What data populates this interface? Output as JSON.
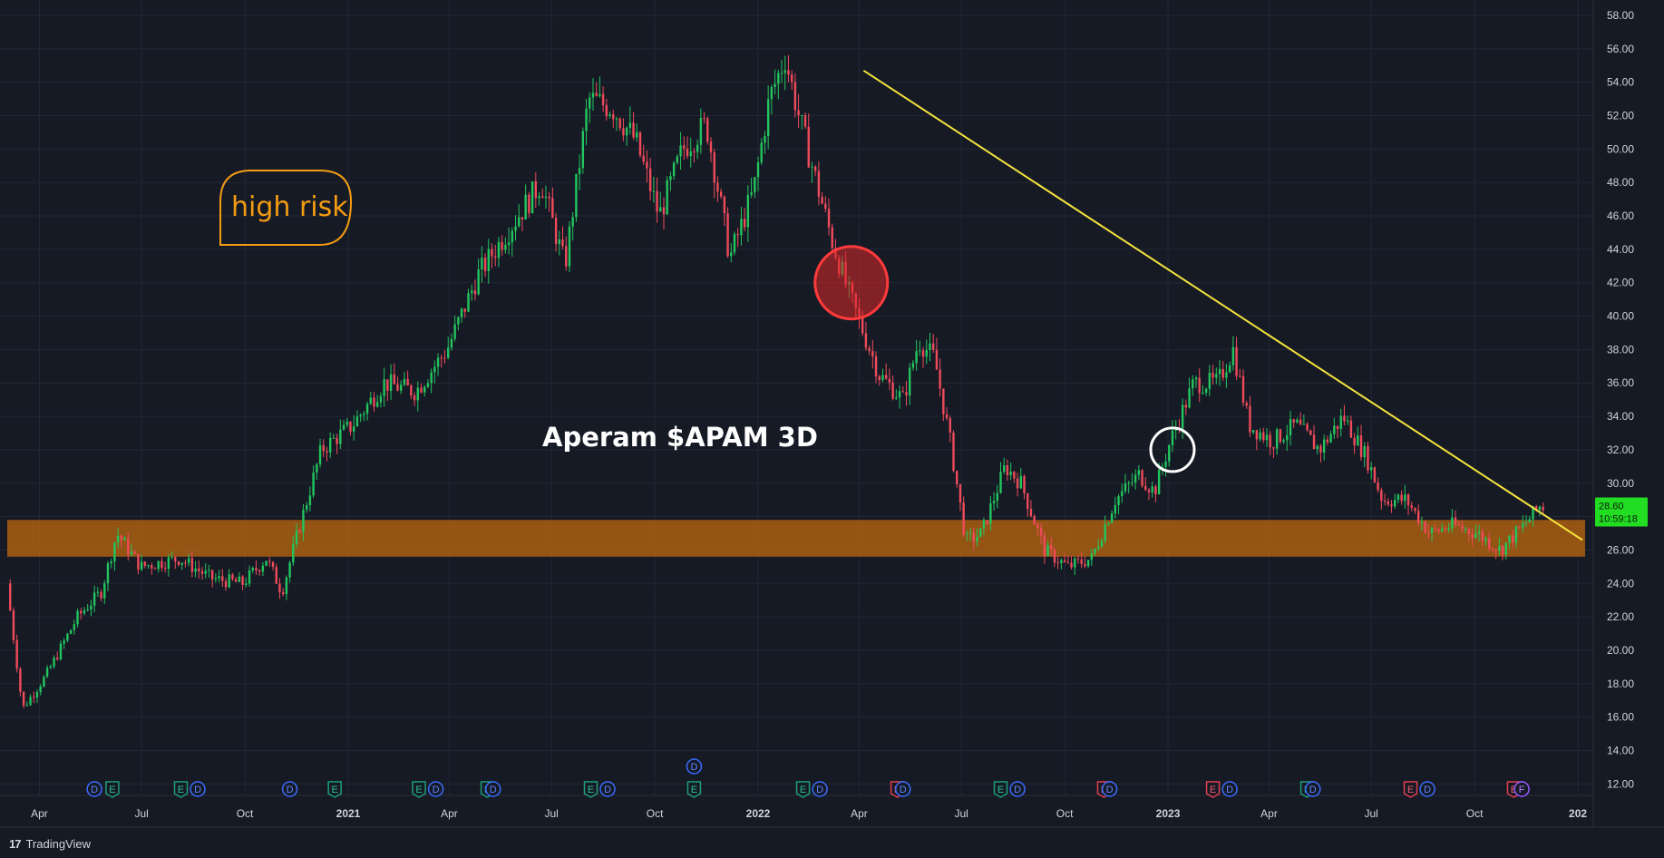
{
  "brand": {
    "logo": "17",
    "name": "TradingView"
  },
  "colors": {
    "up": "#22c55e",
    "down": "#ef4b5a",
    "trendline": "#f5e23c",
    "zone": "#b8650f",
    "risk": "#f39c12",
    "price_tag": "#22dd22"
  },
  "price_tag": {
    "price": "28.60",
    "countdown": "10:59:18"
  },
  "chart_data": {
    "type": "candlestick",
    "title": "Aperam $APAM 3D",
    "annotations": {
      "risk_label": "high risk",
      "support_zone": [
        25.6,
        27.8
      ],
      "trendline": [
        {
          "date": "2022-04-05",
          "price": 54.7
        },
        {
          "date": "2024-01-05",
          "price": 26.6
        }
      ],
      "circles": [
        {
          "date": "2022-03-25",
          "price": 42.0,
          "style": "filled-red"
        },
        {
          "date": "2023-01-05",
          "price": 32.0,
          "style": "white-ring"
        }
      ]
    },
    "y_axis": {
      "ylim": [
        11.5,
        58.8
      ],
      "ticks": [
        "58.00",
        "56.00",
        "54.00",
        "52.00",
        "50.00",
        "48.00",
        "46.00",
        "44.00",
        "42.00",
        "40.00",
        "38.00",
        "36.00",
        "34.00",
        "32.00",
        "30.00",
        "28.00",
        "26.00",
        "24.00",
        "22.00",
        "20.00",
        "18.00",
        "16.00",
        "14.00",
        "12.00"
      ]
    },
    "x_axis": {
      "range": [
        "2020-03-05",
        "2024-01-05"
      ],
      "ticks": [
        {
          "label": "Apr",
          "date": "2020-04-01",
          "bold": false
        },
        {
          "label": "Jul",
          "date": "2020-07-01",
          "bold": false
        },
        {
          "label": "Oct",
          "date": "2020-10-01",
          "bold": false
        },
        {
          "label": "2021",
          "date": "2021-01-01",
          "bold": true
        },
        {
          "label": "Apr",
          "date": "2021-04-01",
          "bold": false
        },
        {
          "label": "Jul",
          "date": "2021-07-01",
          "bold": false
        },
        {
          "label": "Oct",
          "date": "2021-10-01",
          "bold": false
        },
        {
          "label": "2022",
          "date": "2022-01-01",
          "bold": true
        },
        {
          "label": "Apr",
          "date": "2022-04-01",
          "bold": false
        },
        {
          "label": "Jul",
          "date": "2022-07-01",
          "bold": false
        },
        {
          "label": "Oct",
          "date": "2022-10-01",
          "bold": false
        },
        {
          "label": "2023",
          "date": "2023-01-01",
          "bold": true
        },
        {
          "label": "Apr",
          "date": "2023-04-01",
          "bold": false
        },
        {
          "label": "Jul",
          "date": "2023-07-01",
          "bold": false
        },
        {
          "label": "Oct",
          "date": "2023-10-01",
          "bold": false
        },
        {
          "label": "202",
          "date": "2024-01-01",
          "bold": true
        }
      ]
    },
    "price_path": [
      [
        "2020-03-06",
        24.0
      ],
      [
        "2020-03-20",
        16.5
      ],
      [
        "2020-04-10",
        18.5
      ],
      [
        "2020-05-08",
        22.0
      ],
      [
        "2020-05-29",
        23.5
      ],
      [
        "2020-06-12",
        27.0
      ],
      [
        "2020-07-03",
        25.0
      ],
      [
        "2020-08-07",
        25.5
      ],
      [
        "2020-09-04",
        24.3
      ],
      [
        "2020-10-02",
        24.0
      ],
      [
        "2020-10-23",
        25.5
      ],
      [
        "2020-11-06",
        23.5
      ],
      [
        "2020-11-20",
        27.0
      ],
      [
        "2020-12-11",
        32.0
      ],
      [
        "2021-01-08",
        33.5
      ],
      [
        "2021-02-05",
        36.0
      ],
      [
        "2021-03-05",
        35.5
      ],
      [
        "2021-04-02",
        38.0
      ],
      [
        "2021-04-30",
        42.5
      ],
      [
        "2021-06-04",
        46.0
      ],
      [
        "2021-06-25",
        48.0
      ],
      [
        "2021-07-16",
        43.0
      ],
      [
        "2021-08-06",
        53.0
      ],
      [
        "2021-08-27",
        52.5
      ],
      [
        "2021-09-17",
        50.5
      ],
      [
        "2021-10-08",
        46.0
      ],
      [
        "2021-10-29",
        50.0
      ],
      [
        "2021-11-19",
        51.5
      ],
      [
        "2021-12-10",
        43.5
      ],
      [
        "2021-12-31",
        47.5
      ],
      [
        "2022-01-14",
        53.0
      ],
      [
        "2022-01-28",
        55.5
      ],
      [
        "2022-02-11",
        51.5
      ],
      [
        "2022-02-25",
        48.0
      ],
      [
        "2022-03-11",
        44.5
      ],
      [
        "2022-03-25",
        41.5
      ],
      [
        "2022-04-08",
        39.0
      ],
      [
        "2022-04-22",
        36.5
      ],
      [
        "2022-05-13",
        35.0
      ],
      [
        "2022-05-27",
        38.5
      ],
      [
        "2022-06-10",
        37.5
      ],
      [
        "2022-06-24",
        32.5
      ],
      [
        "2022-07-08",
        26.5
      ],
      [
        "2022-07-22",
        27.0
      ],
      [
        "2022-08-12",
        31.0
      ],
      [
        "2022-08-26",
        30.0
      ],
      [
        "2022-09-16",
        26.0
      ],
      [
        "2022-10-07",
        25.0
      ],
      [
        "2022-10-28",
        25.5
      ],
      [
        "2022-11-18",
        29.0
      ],
      [
        "2022-12-09",
        30.5
      ],
      [
        "2022-12-23",
        29.5
      ],
      [
        "2023-01-06",
        32.5
      ],
      [
        "2023-01-27",
        36.0
      ],
      [
        "2023-02-17",
        36.0
      ],
      [
        "2023-03-03",
        38.0
      ],
      [
        "2023-03-17",
        33.5
      ],
      [
        "2023-04-07",
        32.5
      ],
      [
        "2023-04-28",
        33.5
      ],
      [
        "2023-05-19",
        32.0
      ],
      [
        "2023-06-09",
        34.0
      ],
      [
        "2023-06-30",
        31.5
      ],
      [
        "2023-07-14",
        29.0
      ],
      [
        "2023-08-04",
        29.0
      ],
      [
        "2023-08-25",
        27.0
      ],
      [
        "2023-09-15",
        27.5
      ],
      [
        "2023-10-06",
        27.0
      ],
      [
        "2023-10-27",
        26.0
      ],
      [
        "2023-11-17",
        27.5
      ],
      [
        "2023-12-01",
        28.6
      ]
    ],
    "event_markers": [
      {
        "date": "2020-05-20",
        "letter": "D",
        "type": "dividend"
      },
      {
        "date": "2020-06-05",
        "letter": "E",
        "type": "earnings-positive"
      },
      {
        "date": "2020-08-05",
        "letter": "E",
        "type": "earnings-positive"
      },
      {
        "date": "2020-08-20",
        "letter": "D",
        "type": "dividend"
      },
      {
        "date": "2020-11-10",
        "letter": "D",
        "type": "dividend"
      },
      {
        "date": "2020-12-20",
        "letter": "E",
        "type": "earnings-positive"
      },
      {
        "date": "2021-03-05",
        "letter": "E",
        "type": "earnings-positive"
      },
      {
        "date": "2021-03-20",
        "letter": "D",
        "type": "dividend"
      },
      {
        "date": "2021-05-05",
        "letter": "E",
        "type": "earnings-positive"
      },
      {
        "date": "2021-05-10",
        "letter": "D",
        "type": "dividend"
      },
      {
        "date": "2021-08-05",
        "letter": "E",
        "type": "earnings-positive"
      },
      {
        "date": "2021-08-20",
        "letter": "D",
        "type": "dividend"
      },
      {
        "date": "2021-11-05",
        "letter": "D",
        "type": "dividend",
        "row": 2
      },
      {
        "date": "2021-11-05",
        "letter": "E",
        "type": "earnings-positive"
      },
      {
        "date": "2022-02-10",
        "letter": "E",
        "type": "earnings-positive"
      },
      {
        "date": "2022-02-25",
        "letter": "D",
        "type": "dividend"
      },
      {
        "date": "2022-05-05",
        "letter": "E",
        "type": "earnings-negative"
      },
      {
        "date": "2022-05-10",
        "letter": "D",
        "type": "dividend"
      },
      {
        "date": "2022-08-05",
        "letter": "E",
        "type": "earnings-positive"
      },
      {
        "date": "2022-08-20",
        "letter": "D",
        "type": "dividend"
      },
      {
        "date": "2022-11-05",
        "letter": "E",
        "type": "earnings-negative"
      },
      {
        "date": "2022-11-10",
        "letter": "D",
        "type": "dividend"
      },
      {
        "date": "2023-02-10",
        "letter": "E",
        "type": "earnings-negative"
      },
      {
        "date": "2023-02-25",
        "letter": "D",
        "type": "dividend"
      },
      {
        "date": "2023-05-05",
        "letter": "E",
        "type": "earnings-positive"
      },
      {
        "date": "2023-05-10",
        "letter": "D",
        "type": "dividend"
      },
      {
        "date": "2023-08-05",
        "letter": "E",
        "type": "earnings-negative"
      },
      {
        "date": "2023-08-20",
        "letter": "D",
        "type": "dividend"
      },
      {
        "date": "2023-11-05",
        "letter": "E",
        "type": "earnings-negative"
      },
      {
        "date": "2023-11-12",
        "letter": "F",
        "type": "other"
      }
    ]
  }
}
